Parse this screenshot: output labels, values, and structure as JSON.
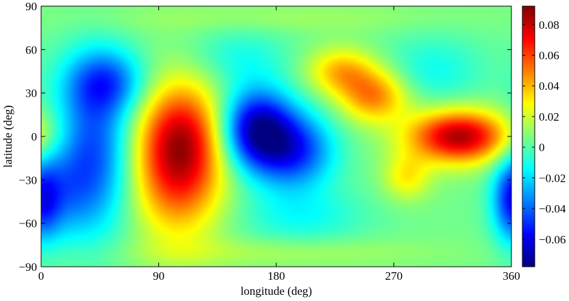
{
  "chart_data": {
    "type": "heatmap",
    "title": "",
    "xlabel": "longitude (deg)",
    "ylabel": "latitude (deg)",
    "xlim": [
      0,
      360
    ],
    "ylim": [
      -90,
      90
    ],
    "xticks": [
      0,
      90,
      180,
      270,
      360
    ],
    "yticks": [
      90,
      60,
      30,
      0,
      -30,
      -60,
      -90
    ],
    "xtick_labels": [
      "0",
      "90",
      "180",
      "270",
      "360"
    ],
    "ytick_labels": [
      "90",
      "60",
      "30",
      "0",
      "−30",
      "−60",
      "−90"
    ],
    "colormap": "jet",
    "color_range": [
      -0.078,
      0.092
    ],
    "colorbar": {
      "ticks": [
        0.08,
        0.06,
        0.04,
        0.02,
        0,
        -0.02,
        -0.04,
        -0.06
      ],
      "tick_labels": [
        "0.08",
        "0.06",
        "0.04",
        "0.02",
        "0",
        "−0.02",
        "−0.04",
        "−0.06"
      ]
    },
    "background_value": 0.005,
    "features": [
      {
        "lon": 105,
        "lat": -15,
        "value": 0.08,
        "width_lon": 34,
        "width_lat": 48
      },
      {
        "lon": 112,
        "lat": 5,
        "value": 0.02,
        "width_lon": 30,
        "width_lat": 30
      },
      {
        "lon": 165,
        "lat": 5,
        "value": -0.07,
        "width_lon": 28,
        "width_lat": 28
      },
      {
        "lon": 195,
        "lat": -10,
        "value": -0.045,
        "width_lon": 30,
        "width_lat": 26
      },
      {
        "lon": 40,
        "lat": -10,
        "value": -0.045,
        "width_lon": 30,
        "width_lat": 55
      },
      {
        "lon": 50,
        "lat": 38,
        "value": -0.035,
        "width_lon": 30,
        "width_lat": 22
      },
      {
        "lon": 12,
        "lat": -40,
        "value": -0.02,
        "width_lon": 25,
        "width_lat": 30
      },
      {
        "lon": 320,
        "lat": 0,
        "value": 0.085,
        "width_lon": 38,
        "width_lat": 18
      },
      {
        "lon": 255,
        "lat": 28,
        "value": 0.05,
        "width_lon": 26,
        "width_lat": 18
      },
      {
        "lon": 230,
        "lat": 45,
        "value": 0.04,
        "width_lon": 26,
        "width_lat": 16
      },
      {
        "lon": 280,
        "lat": -28,
        "value": 0.03,
        "width_lon": 18,
        "width_lat": 16
      },
      {
        "lon": 360,
        "lat": -45,
        "value": -0.035,
        "width_lon": 14,
        "width_lat": 28
      },
      {
        "lon": 300,
        "lat": 45,
        "value": -0.012,
        "width_lon": 40,
        "width_lat": 25
      },
      {
        "lon": 200,
        "lat": -55,
        "value": -0.012,
        "width_lon": 50,
        "width_lat": 20
      },
      {
        "lon": 150,
        "lat": 55,
        "value": -0.01,
        "width_lon": 40,
        "width_lat": 20
      },
      {
        "lon": 180,
        "lat": -80,
        "value": 0.015,
        "width_lon": 120,
        "width_lat": 10
      },
      {
        "lon": 180,
        "lat": 82,
        "value": 0.012,
        "width_lon": 150,
        "width_lat": 10
      }
    ]
  }
}
